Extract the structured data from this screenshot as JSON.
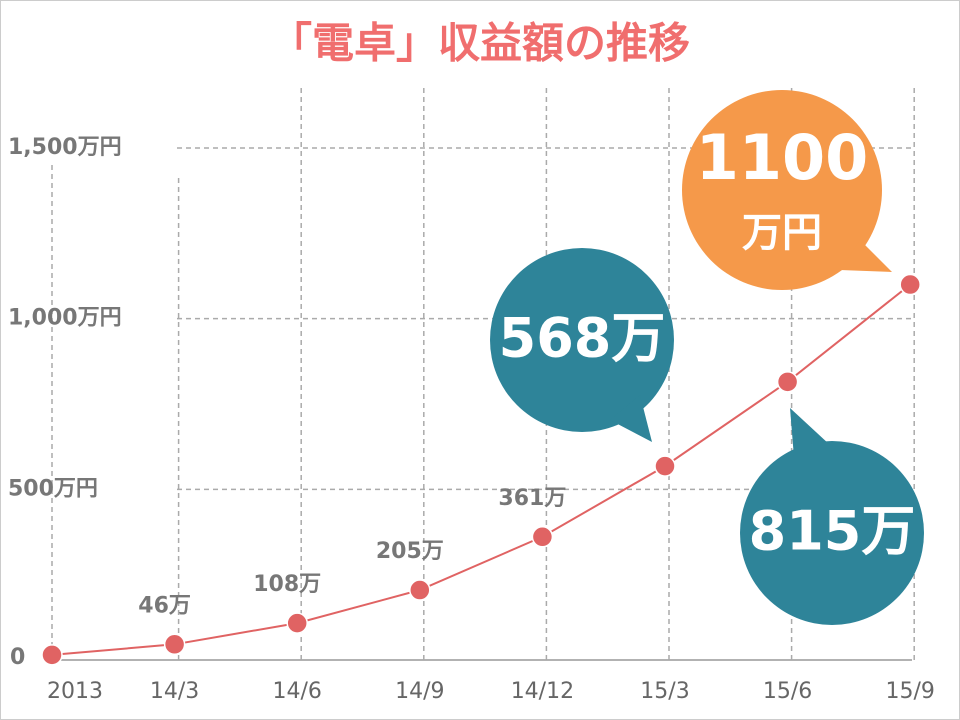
{
  "chart_data": {
    "type": "line",
    "title": "「電卓」収益額の推移",
    "categories": [
      "2013",
      "14/3",
      "14/6",
      "14/9",
      "14/12",
      "15/3",
      "15/6",
      "15/9"
    ],
    "values": [
      15,
      46,
      108,
      205,
      361,
      568,
      815,
      1100
    ],
    "value_labels": [
      null,
      "46万",
      "108万",
      "205万",
      "361万",
      "568万",
      "815万",
      "1100"
    ],
    "callout_unit": "万円",
    "color": "#e06363",
    "callouts": [
      {
        "point": 5,
        "color": "#2e8499"
      },
      {
        "point": 6,
        "color": "#2e8499"
      },
      {
        "point": 7,
        "color": "#f5994a"
      }
    ],
    "ylim": [
      0,
      1500
    ],
    "yticks": [
      0,
      {
        "value": 500,
        "label": "500万円"
      },
      {
        "value": 1000,
        "label": "1,000万円"
      },
      {
        "value": 1500,
        "label": "1,500万円"
      }
    ],
    "grid": true
  }
}
